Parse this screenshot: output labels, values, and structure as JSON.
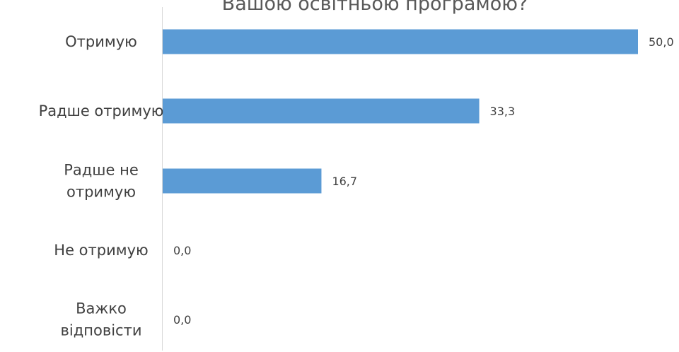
{
  "chart_data": {
    "type": "bar",
    "orientation": "horizontal",
    "title": "Вашою освітньою програмою?",
    "categories": [
      "Отримую",
      "Радше отримую",
      "Радше не отримую",
      "Не отримую",
      "Важко відповісти"
    ],
    "category_lines": [
      [
        "Отримую"
      ],
      [
        "Радше отримую"
      ],
      [
        "Радше не",
        "отримую"
      ],
      [
        "Не отримую"
      ],
      [
        "Важко",
        "відповісти"
      ]
    ],
    "values": [
      50.0,
      33.3,
      16.7,
      0.0,
      0.0
    ],
    "value_labels": [
      "50,0",
      "33,3",
      "16,7",
      "0,0",
      "0,0"
    ],
    "xlim": [
      0,
      50
    ],
    "grid": false,
    "legend": "none",
    "bar_color": "#5B9BD5",
    "axis_color": "#D9D9D9",
    "text_color": "#404040"
  }
}
